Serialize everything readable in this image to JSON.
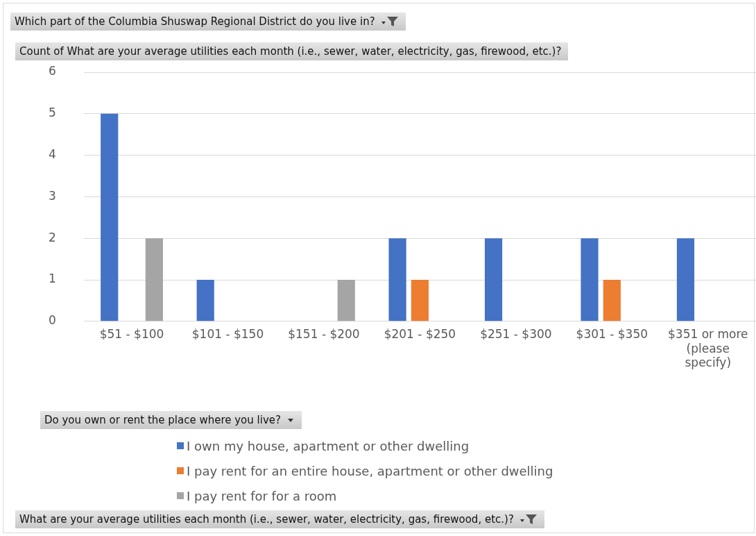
{
  "chart_data": {
    "type": "bar",
    "title": "Which part of the Columbia Shuswap Regional District do you live in?",
    "subtitle": "Count of What are your average utilities each month (i.e., sewer, water, electricity, gas, firewood, etc.)?",
    "annotations": [
      "What are your average utilities each month (i.e., sewer, water, electricity, gas, firewood, etc.)?"
    ],
    "legend_title": "Do you own or rent the place where you live?",
    "categories": [
      "$51 - $100",
      "$101 - $150",
      "$151 - $200",
      "$201 - $250",
      "$251 - $300",
      "$301 - $350",
      "$351 or more (please specify)"
    ],
    "series": [
      {
        "name": "I own my house, apartment or other dwelling",
        "color": "#4472c4",
        "values": [
          5,
          1,
          0,
          2,
          2,
          2,
          2
        ]
      },
      {
        "name": "I pay rent for an entire house, apartment or other dwelling",
        "color": "#ed7d31",
        "values": [
          0,
          0,
          0,
          1,
          0,
          1,
          0
        ]
      },
      {
        "name": "I pay rent for for a room",
        "color": "#a5a5a5",
        "values": [
          2,
          0,
          1,
          0,
          0,
          0,
          0
        ]
      }
    ],
    "ylim": [
      0,
      6
    ],
    "yticks": [
      0,
      1,
      2,
      3,
      4,
      5,
      6
    ],
    "grid": "y",
    "legend": "bottom"
  }
}
